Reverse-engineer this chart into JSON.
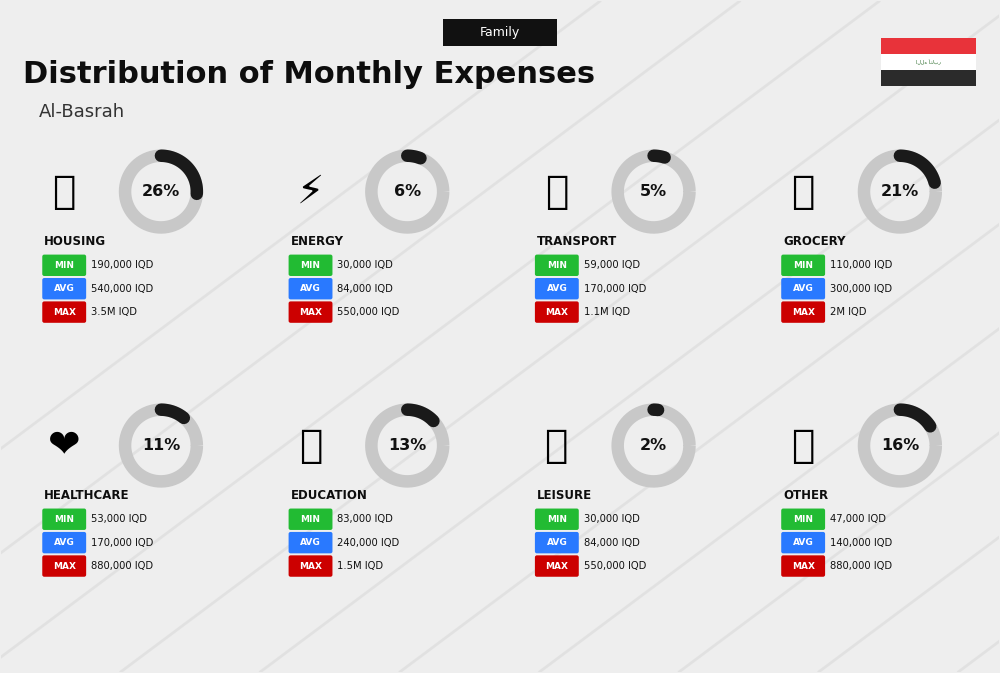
{
  "title": "Distribution of Monthly Expenses",
  "subtitle": "Al-Basrah",
  "tag": "Family",
  "bg_color": "#eeeeee",
  "categories": [
    {
      "name": "HOUSING",
      "pct": 26,
      "min": "190,000 IQD",
      "avg": "540,000 IQD",
      "max": "3.5M IQD"
    },
    {
      "name": "ENERGY",
      "pct": 6,
      "min": "30,000 IQD",
      "avg": "84,000 IQD",
      "max": "550,000 IQD"
    },
    {
      "name": "TRANSPORT",
      "pct": 5,
      "min": "59,000 IQD",
      "avg": "170,000 IQD",
      "max": "1.1M IQD"
    },
    {
      "name": "GROCERY",
      "pct": 21,
      "min": "110,000 IQD",
      "avg": "300,000 IQD",
      "max": "2M IQD"
    },
    {
      "name": "HEALTHCARE",
      "pct": 11,
      "min": "53,000 IQD",
      "avg": "170,000 IQD",
      "max": "880,000 IQD"
    },
    {
      "name": "EDUCATION",
      "pct": 13,
      "min": "83,000 IQD",
      "avg": "240,000 IQD",
      "max": "1.5M IQD"
    },
    {
      "name": "LEISURE",
      "pct": 2,
      "min": "30,000 IQD",
      "avg": "84,000 IQD",
      "max": "550,000 IQD"
    },
    {
      "name": "OTHER",
      "pct": 16,
      "min": "47,000 IQD",
      "avg": "140,000 IQD",
      "max": "880,000 IQD"
    }
  ],
  "min_color": "#22bb33",
  "avg_color": "#2979ff",
  "max_color": "#cc0000",
  "donut_dark": "#1a1a1a",
  "donut_light": "#c8c8c8",
  "tag_bg": "#111111",
  "title_color": "#0d0d0d",
  "subtitle_color": "#333333",
  "cols": [
    1.15,
    3.62,
    6.09,
    8.56
  ],
  "rows": [
    4.6,
    2.05
  ],
  "flag_red": "#e8333a",
  "flag_white": "#ffffff",
  "flag_black": "#2b2b2b"
}
